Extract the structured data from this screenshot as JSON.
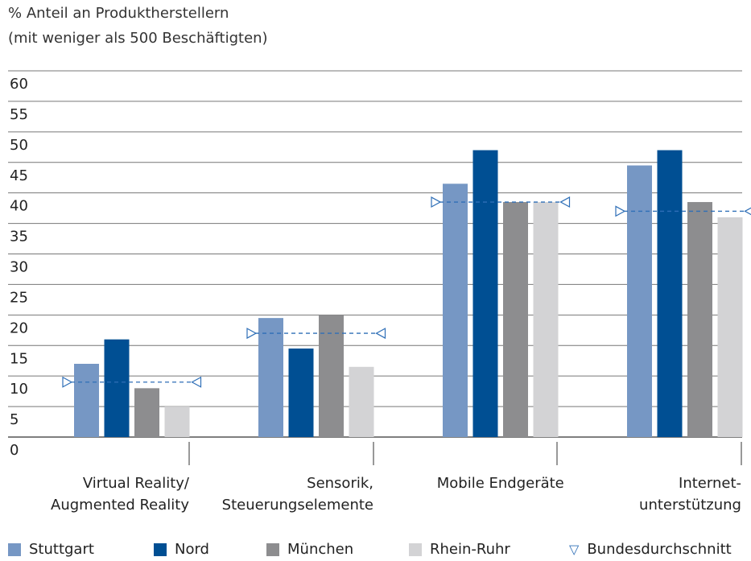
{
  "header": {
    "line1": "% Anteil an Produktherstellern",
    "line2": "(mit weniger als 500 Beschäftigten)"
  },
  "chart_data": {
    "type": "bar",
    "ylim": [
      0,
      60
    ],
    "yticks": [
      0,
      5,
      10,
      15,
      20,
      25,
      30,
      35,
      40,
      45,
      50,
      55,
      60
    ],
    "categories": [
      [
        "Virtual Reality/",
        "Augmented Reality"
      ],
      [
        "Sensorik,",
        "Steuerungselemente"
      ],
      [
        "Mobile Endgeräte"
      ],
      [
        "Internet-",
        "unterstützung"
      ]
    ],
    "series": [
      {
        "name": "Stuttgart",
        "color": "#7697c4",
        "values": [
          12,
          19.5,
          41.5,
          44.5
        ]
      },
      {
        "name": "Nord",
        "color": "#004f93",
        "values": [
          16,
          14.5,
          47,
          47
        ]
      },
      {
        "name": "München",
        "color": "#8d8d8f",
        "values": [
          8,
          20,
          38.5,
          38.5
        ]
      },
      {
        "name": "Rhein-Ruhr",
        "color": "#d3d3d5",
        "values": [
          5,
          11.5,
          38.5,
          36
        ]
      }
    ],
    "reference": {
      "name": "Bundesdurchschnitt",
      "color": "#2f6fb7",
      "values": [
        9,
        17,
        38.5,
        37
      ]
    },
    "grid": true,
    "legend_position": "bottom"
  }
}
